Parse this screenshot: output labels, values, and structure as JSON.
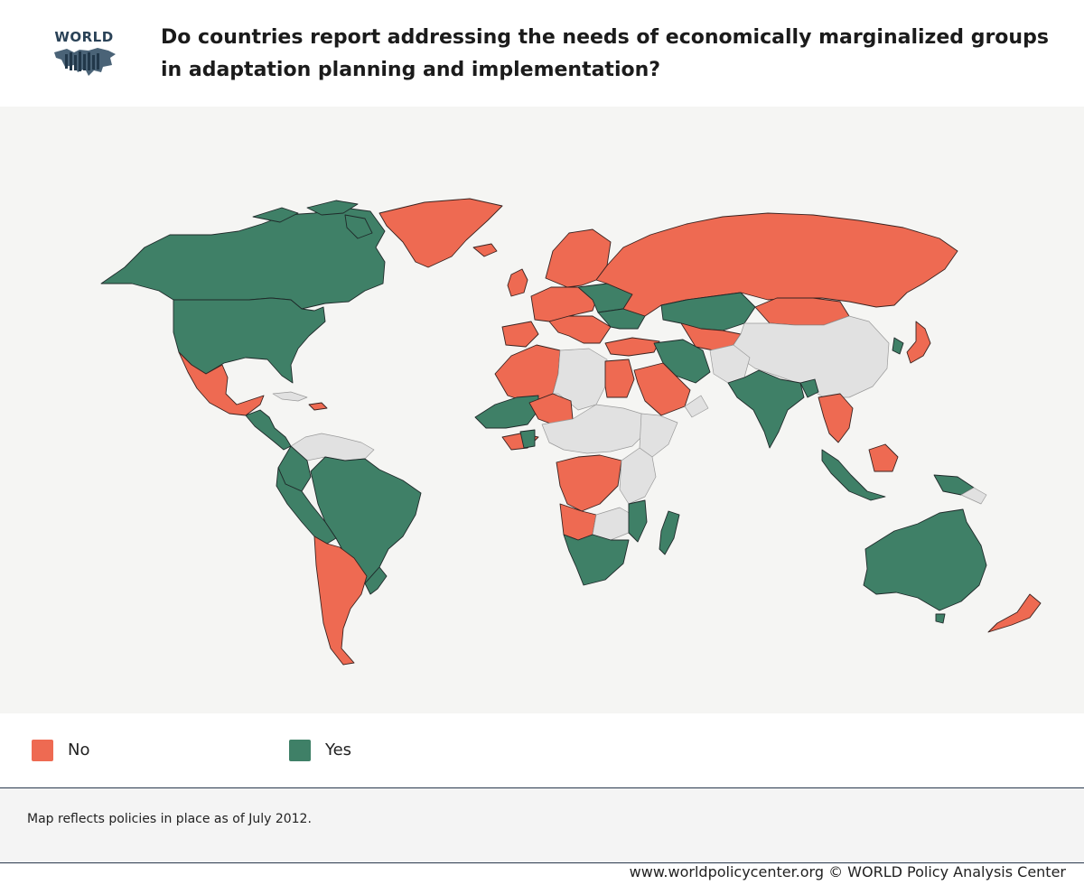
{
  "header": {
    "logo_text": "WORLD",
    "title": "Do countries report addressing the needs of economically marginalized groups in adaptation planning and implementation?"
  },
  "legend": [
    {
      "label": "No",
      "color": "#ee6a52"
    },
    {
      "label": "Yes",
      "color": "#3f8067"
    }
  ],
  "note": "Map reflects policies in place as of July 2012.",
  "footer": "www.worldpolicycenter.org © WORLD Policy Analysis Center",
  "colors": {
    "yes": "#3f8067",
    "no": "#ee6a52",
    "no_data": "#e1e1e1",
    "background": "#f5f5f3"
  }
}
